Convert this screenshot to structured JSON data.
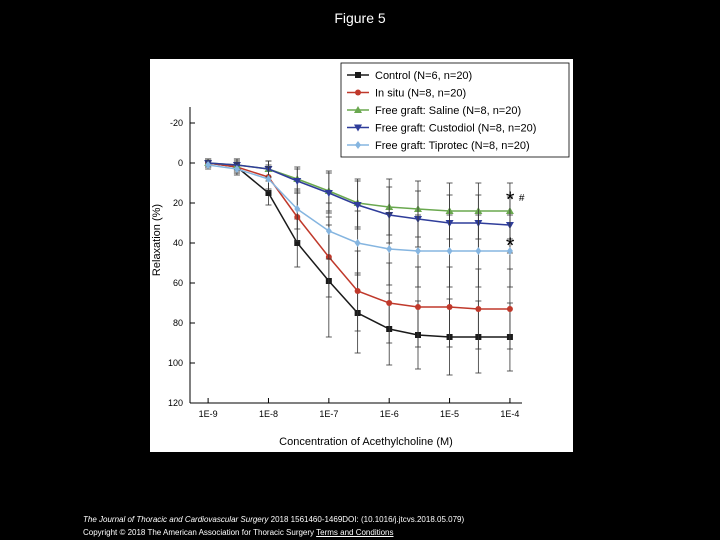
{
  "figure_title": "Figure 5",
  "footer": {
    "journal": "The Journal of Thoracic and Cardiovascular Surgery",
    "citation": "2018 1561460-1469DOI: (10.1016/j.jtcvs.2018.05.079)",
    "copyright": "Copyright © 2018 The American Association for Thoracic Surgery",
    "terms_link": "Terms and Conditions"
  },
  "chart_data": {
    "type": "line",
    "title": "",
    "xlabel": "Concentration of Acethylcholine (M)",
    "ylabel": "Relaxation (%)",
    "x_scale": "log",
    "x_ticks": [
      "1E-9",
      "1E-8",
      "1E-7",
      "1E-6",
      "1E-5",
      "1E-4"
    ],
    "x_tick_values": [
      1e-09,
      1e-08,
      1e-07,
      1e-06,
      1e-05,
      0.0001
    ],
    "y_ticks": [
      "-20",
      "0",
      "20",
      "40",
      "60",
      "80",
      "100",
      "120"
    ],
    "y_tick_values": [
      -20,
      0,
      20,
      40,
      60,
      80,
      100,
      120
    ],
    "ylim": [
      -28,
      120
    ],
    "y_inverted": true,
    "grid": false,
    "legend_position": "top-right",
    "x": [
      1e-09,
      3e-09,
      1e-08,
      3e-08,
      1e-07,
      3e-07,
      1e-06,
      3e-06,
      1e-05,
      3e-05,
      0.0001
    ],
    "series": [
      {
        "name": "Control (N=6, n=20)",
        "color": "#1a1a1a",
        "marker": "square",
        "values": [
          0,
          2,
          15,
          40,
          59,
          75,
          83,
          86,
          87,
          87,
          87
        ],
        "errors": [
          2,
          3,
          6,
          12,
          28,
          20,
          18,
          17,
          19,
          18,
          17
        ]
      },
      {
        "name": "In situ (N=8, n=20)",
        "color": "#c0392b",
        "marker": "circle",
        "values": [
          0,
          2,
          7,
          27,
          47,
          64,
          70,
          72,
          72,
          73,
          73
        ],
        "errors": [
          2,
          3,
          6,
          12,
          20,
          20,
          20,
          20,
          20,
          20,
          20
        ]
      },
      {
        "name": "Free graft: Saline (N=8, n=20)",
        "color": "#6aa84f",
        "marker": "triangle-up",
        "values": [
          0,
          1,
          3,
          8,
          14,
          20,
          22,
          23,
          24,
          24,
          24
        ],
        "errors": [
          2,
          3,
          4,
          6,
          10,
          12,
          14,
          14,
          14,
          14,
          14
        ]
      },
      {
        "name": "Free graft: Custodiol (N=8, n=20)",
        "color": "#2f3d9a",
        "marker": "triangle-down",
        "values": [
          0,
          1,
          3,
          9,
          15,
          21,
          26,
          28,
          30,
          30,
          31
        ],
        "errors": [
          2,
          3,
          4,
          6,
          10,
          12,
          14,
          14,
          14,
          14,
          14
        ]
      },
      {
        "name": "Free graft: Tiprotec (N=8, n=20)",
        "color": "#85b5e0",
        "marker": "diamond",
        "values": [
          1,
          3,
          8,
          23,
          34,
          40,
          43,
          44,
          44,
          44,
          44
        ],
        "errors": [
          2,
          3,
          6,
          10,
          14,
          16,
          18,
          18,
          18,
          18,
          18
        ]
      }
    ],
    "annotations": [
      {
        "text": "*",
        "x": 0.0001,
        "y": 17
      },
      {
        "text": "#",
        "x": 0.0001,
        "y": 17
      },
      {
        "text": "*",
        "x": 0.0001,
        "y": 40
      }
    ]
  }
}
